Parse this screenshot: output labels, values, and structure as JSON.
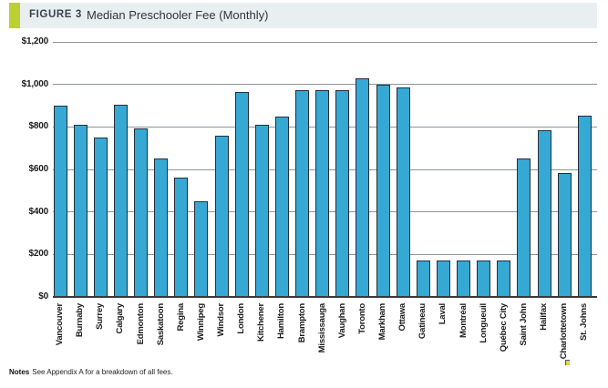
{
  "figure": {
    "label": "FIGURE 3",
    "title": "Median Preschooler Fee (Monthly)"
  },
  "notes": {
    "label": "Notes",
    "text": "See Appendix A for a breakdown of all fees."
  },
  "colors": {
    "accent": "#bccf33",
    "header_band": "#e9eef1",
    "bar_fill": "#35a8d4",
    "bar_border": "#262e38",
    "gridline": "#8f9499"
  },
  "chart_data": {
    "type": "bar",
    "title": "Median Preschooler Fee (Monthly)",
    "xlabel": "",
    "ylabel": "",
    "ylim": [
      0,
      1200
    ],
    "y_tick_step": 200,
    "y_tick_labels": [
      "$1,200",
      "$1,000",
      "$800",
      "$600",
      "$400",
      "$200",
      "$0"
    ],
    "grid": true,
    "legend": "none",
    "categories": [
      "Vancouver",
      "Burnaby",
      "Surrey",
      "Calgary",
      "Edmonton",
      "Saskatoon",
      "Regina",
      "Winnipeg",
      "Windsor",
      "London",
      "Kitchener",
      "Hamilton",
      "Brampton",
      "Mississauga",
      "Vaughan",
      "Toronto",
      "Markham",
      "Ottawa",
      "Gatineau",
      "Laval",
      "Montréal",
      "Longueuil",
      "Québec City",
      "Saint John",
      "Halifax",
      "Charlottetown",
      "St. Johns"
    ],
    "values": [
      900,
      810,
      750,
      905,
      795,
      650,
      560,
      450,
      760,
      965,
      810,
      850,
      975,
      975,
      975,
      1030,
      1000,
      985,
      170,
      170,
      170,
      170,
      170,
      650,
      785,
      585,
      855
    ]
  }
}
